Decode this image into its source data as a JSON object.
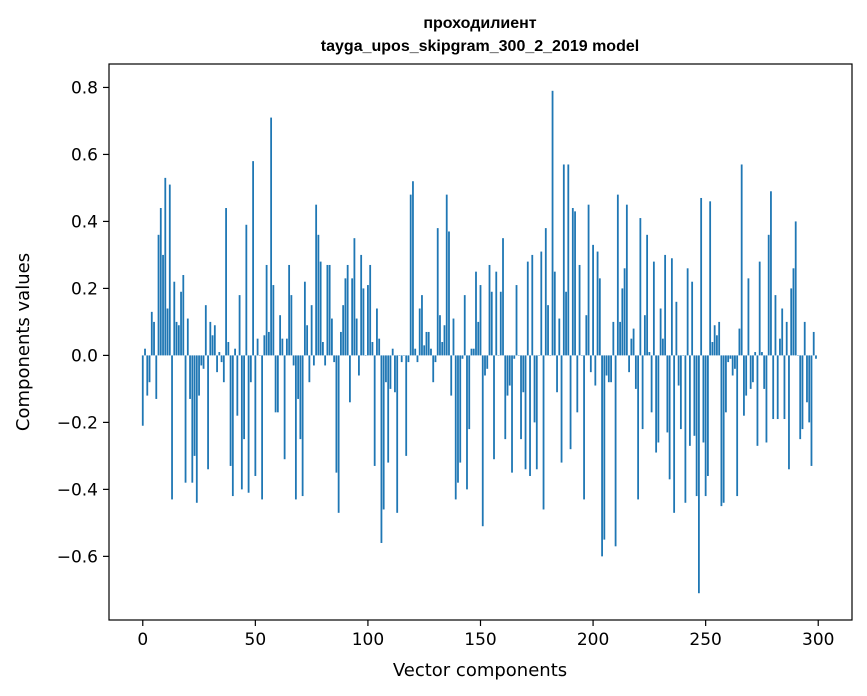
{
  "chart_data": {
    "type": "bar",
    "title_line1": "проходилиент",
    "title_line2": "tayga_upos_skipgram_300_2_2019 model",
    "xlabel": "Vector components",
    "ylabel": "Components values",
    "xlim": [
      -15,
      315
    ],
    "ylim": [
      -0.79,
      0.87
    ],
    "x_ticks": [
      0,
      50,
      100,
      150,
      200,
      250,
      300
    ],
    "x_tick_labels": [
      "0",
      "50",
      "100",
      "150",
      "200",
      "250",
      "300"
    ],
    "y_ticks": [
      -0.6,
      -0.4,
      -0.2,
      0.0,
      0.2,
      0.4,
      0.6,
      0.8
    ],
    "y_tick_labels": [
      "−0.6",
      "−0.4",
      "−0.2",
      "0.0",
      "0.2",
      "0.4",
      "0.6",
      "0.8"
    ],
    "grid": false,
    "bar_color": "#1f77b4",
    "values": [
      -0.21,
      0.02,
      -0.12,
      -0.08,
      0.13,
      0.1,
      -0.13,
      0.36,
      0.44,
      0.3,
      0.53,
      0.14,
      0.51,
      -0.43,
      0.22,
      0.1,
      0.09,
      0.19,
      0.24,
      -0.38,
      0.11,
      -0.13,
      -0.38,
      -0.3,
      -0.44,
      -0.12,
      -0.03,
      -0.04,
      0.15,
      -0.34,
      0.1,
      0.06,
      0.09,
      -0.05,
      0.01,
      -0.02,
      -0.08,
      0.44,
      0.04,
      -0.33,
      -0.42,
      0.02,
      -0.18,
      0.18,
      -0.4,
      -0.25,
      0.39,
      -0.41,
      -0.08,
      0.58,
      -0.36,
      0.05,
      0.0,
      -0.43,
      0.06,
      0.27,
      0.07,
      0.71,
      0.21,
      -0.17,
      -0.17,
      0.12,
      0.05,
      -0.31,
      0.05,
      0.27,
      0.18,
      -0.03,
      -0.43,
      -0.13,
      -0.25,
      -0.42,
      0.22,
      0.09,
      -0.08,
      0.15,
      -0.03,
      0.45,
      0.36,
      0.28,
      0.04,
      -0.03,
      0.27,
      0.27,
      0.11,
      -0.02,
      -0.35,
      -0.47,
      0.07,
      0.15,
      0.23,
      0.27,
      -0.14,
      0.23,
      0.35,
      0.11,
      -0.06,
      0.3,
      0.2,
      0.0,
      0.21,
      0.27,
      0.04,
      -0.33,
      0.14,
      0.05,
      -0.56,
      -0.46,
      -0.08,
      -0.32,
      -0.1,
      0.02,
      -0.11,
      -0.47,
      0.0,
      -0.02,
      0.0,
      -0.3,
      -0.02,
      0.48,
      0.52,
      0.02,
      -0.02,
      0.14,
      0.18,
      0.03,
      0.07,
      0.07,
      0.02,
      -0.08,
      -0.02,
      0.38,
      0.12,
      0.04,
      0.09,
      0.48,
      0.37,
      -0.12,
      0.11,
      -0.43,
      -0.38,
      -0.32,
      -0.01,
      0.18,
      -0.4,
      -0.22,
      0.02,
      0.02,
      0.25,
      0.1,
      0.21,
      -0.51,
      -0.06,
      -0.04,
      0.27,
      0.19,
      -0.31,
      0.25,
      0.0,
      0.19,
      0.35,
      -0.25,
      -0.12,
      -0.09,
      -0.35,
      -0.01,
      0.21,
      0.0,
      -0.25,
      -0.11,
      -0.34,
      0.28,
      -0.36,
      0.3,
      -0.2,
      -0.34,
      0.0,
      0.31,
      -0.46,
      0.38,
      0.15,
      0.0,
      0.79,
      0.25,
      -0.11,
      0.11,
      -0.32,
      0.57,
      0.19,
      0.57,
      -0.28,
      0.44,
      0.43,
      -0.17,
      0.27,
      0.0,
      -0.43,
      0.12,
      0.45,
      -0.05,
      0.33,
      -0.09,
      0.31,
      0.23,
      -0.6,
      -0.55,
      -0.06,
      -0.08,
      -0.08,
      0.1,
      -0.57,
      0.48,
      0.1,
      0.2,
      0.26,
      0.45,
      -0.05,
      0.05,
      0.08,
      -0.1,
      -0.43,
      0.41,
      -0.22,
      0.12,
      0.36,
      0.01,
      -0.17,
      0.28,
      -0.29,
      -0.26,
      0.14,
      0.05,
      0.3,
      -0.23,
      -0.37,
      0.29,
      -0.47,
      0.16,
      -0.09,
      -0.22,
      0.0,
      -0.44,
      0.26,
      -0.27,
      0.22,
      -0.24,
      -0.42,
      -0.71,
      0.47,
      -0.26,
      -0.42,
      -0.36,
      0.46,
      0.04,
      0.09,
      0.06,
      0.1,
      -0.45,
      -0.44,
      -0.17,
      -0.02,
      -0.01,
      -0.06,
      -0.04,
      -0.42,
      0.08,
      0.57,
      -0.18,
      -0.12,
      0.23,
      -0.1,
      -0.08,
      0.01,
      -0.27,
      0.28,
      0.01,
      -0.1,
      -0.26,
      0.36,
      0.49,
      -0.19,
      0.18,
      -0.19,
      0.05,
      0.14,
      -0.19,
      0.1,
      -0.34,
      0.2,
      0.26,
      0.4,
      0.0,
      -0.25,
      -0.22,
      0.1,
      -0.14,
      -0.2,
      -0.33,
      0.07,
      -0.01
    ]
  }
}
